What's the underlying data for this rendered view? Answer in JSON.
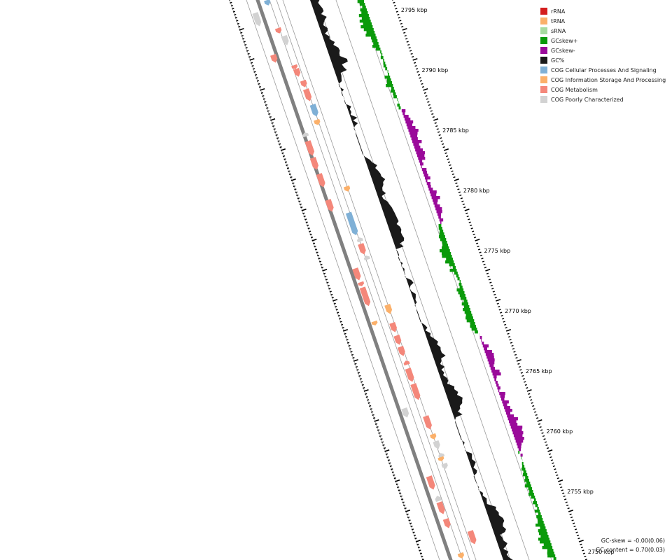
{
  "colors": {
    "rRNA": "#d41d1d",
    "tRNA": "#fbb06a",
    "sRNA": "#a6dba0",
    "gcskew_plus": "#0a9a0a",
    "gcskew_minus": "#9a0a9a",
    "gc_percent": "#1a1a1a",
    "cog_cellular": "#7fb0d6",
    "cog_information": "#fbb06a",
    "cog_metabolism": "#f4877a",
    "cog_poorly": "#d2d2d2",
    "backbone": "#808080"
  },
  "ticks": {
    "unit": "kbp",
    "labels": [
      "2795 kbp",
      "2790 kbp",
      "2785 kbp",
      "2780 kbp",
      "2775 kbp",
      "2770 kbp",
      "2765 kbp",
      "2760 kbp",
      "2755 kbp",
      "2750 kbp"
    ]
  },
  "legend": {
    "items": [
      {
        "label": "rRNA",
        "color": "#d41d1d"
      },
      {
        "label": "tRNA",
        "color": "#fbb06a"
      },
      {
        "label": "sRNA",
        "color": "#a6dba0"
      },
      {
        "label": "GCskew+",
        "color": "#0a9a0a"
      },
      {
        "label": "GCskew-",
        "color": "#9a0a9a"
      },
      {
        "label": "GC%",
        "color": "#1a1a1a"
      },
      {
        "label": "COG Cellular Processes And Signaling",
        "color": "#7fb0d6"
      },
      {
        "label": "COG Information Storage And Processing",
        "color": "#fbb06a"
      },
      {
        "label": "COG Metabolism",
        "color": "#f4877a"
      },
      {
        "label": "COG Poorly Characterized",
        "color": "#d2d2d2"
      }
    ]
  },
  "stats": {
    "gc_skew": "GC-skew = -0.00(0.06)",
    "gc_content": "GC-content = 0.70(0.03)"
  }
}
